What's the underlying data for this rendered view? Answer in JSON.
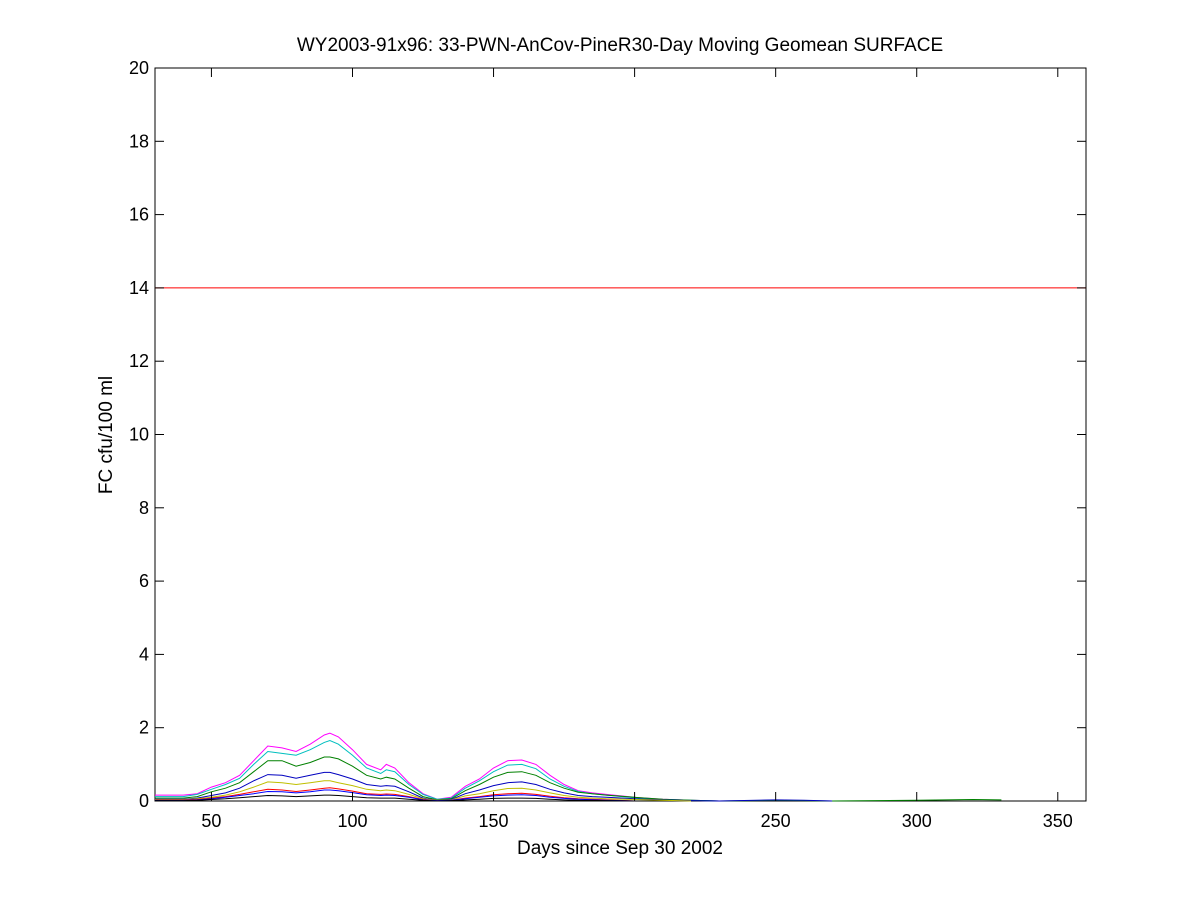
{
  "chart_data": {
    "type": "line",
    "title": "WY2003-91x96: 33-PWN-AnCov-PineR30-Day Moving Geomean SURFACE",
    "xlabel": "Days since Sep 30 2002",
    "ylabel": "FC cfu/100 ml",
    "xlim": [
      30,
      360
    ],
    "ylim": [
      0,
      20
    ],
    "xticks": [
      50,
      100,
      150,
      200,
      250,
      300,
      350
    ],
    "yticks": [
      0,
      2,
      4,
      6,
      8,
      10,
      12,
      14,
      16,
      18,
      20
    ],
    "grid": false,
    "legend": "none",
    "reference_line": {
      "y": 14,
      "color": "#ff0000"
    },
    "series": [
      {
        "color": "#ff00ff",
        "x": [
          30,
          40,
          45,
          50,
          55,
          60,
          65,
          70,
          75,
          80,
          85,
          90,
          92,
          95,
          100,
          105,
          110,
          112,
          115,
          120,
          125,
          130,
          135,
          140,
          145,
          150,
          155,
          160,
          165,
          170,
          175,
          180,
          185,
          190,
          200,
          210,
          220,
          230
        ],
        "y": [
          0.16,
          0.16,
          0.2,
          0.38,
          0.5,
          0.7,
          1.1,
          1.5,
          1.45,
          1.35,
          1.55,
          1.8,
          1.85,
          1.75,
          1.4,
          1.0,
          0.85,
          1.0,
          0.9,
          0.5,
          0.2,
          0.05,
          0.1,
          0.4,
          0.6,
          0.9,
          1.1,
          1.12,
          1.0,
          0.7,
          0.45,
          0.28,
          0.22,
          0.18,
          0.1,
          0.05,
          0.02,
          0.0
        ]
      },
      {
        "color": "#00bfbf",
        "x": [
          30,
          40,
          45,
          50,
          55,
          60,
          65,
          70,
          75,
          80,
          85,
          90,
          92,
          95,
          100,
          105,
          110,
          112,
          115,
          120,
          125,
          130,
          135,
          140,
          145,
          150,
          155,
          160,
          165,
          170,
          175,
          180,
          185,
          190,
          200,
          210,
          220,
          230
        ],
        "y": [
          0.12,
          0.12,
          0.18,
          0.32,
          0.45,
          0.62,
          1.0,
          1.35,
          1.3,
          1.25,
          1.4,
          1.6,
          1.65,
          1.55,
          1.25,
          0.9,
          0.75,
          0.85,
          0.8,
          0.45,
          0.18,
          0.05,
          0.08,
          0.35,
          0.55,
          0.8,
          0.98,
          1.0,
          0.88,
          0.6,
          0.4,
          0.26,
          0.2,
          0.16,
          0.09,
          0.04,
          0.02,
          0.0
        ]
      },
      {
        "color": "#008000",
        "x": [
          30,
          40,
          45,
          50,
          55,
          60,
          65,
          70,
          75,
          80,
          85,
          90,
          92,
          95,
          100,
          105,
          110,
          112,
          115,
          120,
          125,
          130,
          135,
          140,
          145,
          150,
          155,
          160,
          165,
          170,
          175,
          180,
          185,
          190,
          200,
          210,
          220,
          230,
          250,
          270,
          300,
          320,
          330
        ],
        "y": [
          0.08,
          0.08,
          0.12,
          0.25,
          0.35,
          0.5,
          0.8,
          1.1,
          1.1,
          0.95,
          1.05,
          1.2,
          1.2,
          1.15,
          0.95,
          0.7,
          0.6,
          0.65,
          0.6,
          0.35,
          0.12,
          0.03,
          0.06,
          0.28,
          0.45,
          0.65,
          0.78,
          0.8,
          0.7,
          0.5,
          0.35,
          0.24,
          0.2,
          0.16,
          0.1,
          0.05,
          0.02,
          0.0,
          0.02,
          0.0,
          0.02,
          0.04,
          0.03
        ]
      },
      {
        "color": "#0000bf",
        "x": [
          30,
          40,
          45,
          50,
          55,
          60,
          65,
          70,
          75,
          80,
          85,
          90,
          92,
          95,
          100,
          105,
          110,
          112,
          115,
          120,
          125,
          130,
          135,
          140,
          145,
          150,
          155,
          160,
          165,
          170,
          175,
          180,
          185,
          190,
          200,
          210,
          220,
          230,
          250,
          260,
          270
        ],
        "y": [
          0.05,
          0.05,
          0.08,
          0.15,
          0.22,
          0.35,
          0.55,
          0.72,
          0.7,
          0.62,
          0.7,
          0.78,
          0.78,
          0.72,
          0.6,
          0.45,
          0.4,
          0.42,
          0.4,
          0.25,
          0.08,
          0.02,
          0.04,
          0.2,
          0.3,
          0.42,
          0.5,
          0.52,
          0.45,
          0.32,
          0.22,
          0.15,
          0.12,
          0.1,
          0.06,
          0.03,
          0.01,
          0.0,
          0.03,
          0.02,
          0.0
        ]
      },
      {
        "color": "#bfbf00",
        "x": [
          30,
          40,
          45,
          50,
          55,
          60,
          65,
          70,
          75,
          80,
          85,
          90,
          92,
          95,
          100,
          105,
          110,
          112,
          115,
          120,
          125,
          130,
          135,
          140,
          145,
          150,
          155,
          160,
          165,
          170,
          175,
          180,
          185,
          190,
          200,
          210,
          220
        ],
        "y": [
          0.04,
          0.04,
          0.06,
          0.1,
          0.16,
          0.25,
          0.38,
          0.52,
          0.5,
          0.45,
          0.5,
          0.55,
          0.55,
          0.5,
          0.42,
          0.32,
          0.28,
          0.3,
          0.28,
          0.18,
          0.06,
          0.02,
          0.03,
          0.14,
          0.2,
          0.28,
          0.34,
          0.35,
          0.3,
          0.22,
          0.15,
          0.1,
          0.08,
          0.06,
          0.04,
          0.02,
          0.0
        ]
      },
      {
        "color": "#ff0000",
        "x": [
          30,
          40,
          45,
          50,
          55,
          60,
          65,
          70,
          75,
          80,
          85,
          90,
          92,
          95,
          100,
          105,
          110,
          112,
          115,
          120,
          125,
          130,
          135,
          140,
          145,
          150,
          155,
          160,
          165,
          170,
          175,
          180,
          190,
          200
        ],
        "y": [
          0.03,
          0.03,
          0.04,
          0.08,
          0.12,
          0.18,
          0.25,
          0.32,
          0.3,
          0.26,
          0.3,
          0.35,
          0.36,
          0.33,
          0.27,
          0.2,
          0.18,
          0.19,
          0.18,
          0.12,
          0.04,
          0.01,
          0.02,
          0.08,
          0.12,
          0.17,
          0.2,
          0.21,
          0.18,
          0.13,
          0.09,
          0.06,
          0.03,
          0.0
        ]
      },
      {
        "color": "#0000ff",
        "x": [
          30,
          40,
          45,
          50,
          55,
          60,
          65,
          70,
          75,
          80,
          85,
          90,
          92,
          95,
          100,
          105,
          110,
          112,
          115,
          120,
          125,
          130,
          135,
          140,
          145,
          150,
          155,
          160,
          165,
          170,
          175,
          180,
          190,
          200
        ],
        "y": [
          0.02,
          0.02,
          0.03,
          0.06,
          0.1,
          0.15,
          0.2,
          0.26,
          0.25,
          0.22,
          0.25,
          0.3,
          0.3,
          0.28,
          0.23,
          0.17,
          0.15,
          0.16,
          0.15,
          0.1,
          0.03,
          0.01,
          0.02,
          0.06,
          0.1,
          0.14,
          0.16,
          0.17,
          0.15,
          0.1,
          0.07,
          0.05,
          0.02,
          0.0
        ]
      },
      {
        "color": "#000000",
        "x": [
          30,
          40,
          45,
          50,
          55,
          60,
          65,
          70,
          75,
          80,
          85,
          90,
          92,
          95,
          100,
          105,
          110,
          112,
          115,
          120,
          125,
          130,
          135,
          140,
          145,
          150,
          155,
          160,
          165,
          170,
          175,
          180,
          190,
          200
        ],
        "y": [
          0.01,
          0.01,
          0.02,
          0.04,
          0.06,
          0.09,
          0.12,
          0.15,
          0.14,
          0.12,
          0.14,
          0.16,
          0.16,
          0.15,
          0.12,
          0.09,
          0.08,
          0.08,
          0.08,
          0.05,
          0.02,
          0.0,
          0.01,
          0.03,
          0.05,
          0.07,
          0.08,
          0.08,
          0.07,
          0.05,
          0.03,
          0.02,
          0.01,
          0.0
        ]
      }
    ]
  }
}
